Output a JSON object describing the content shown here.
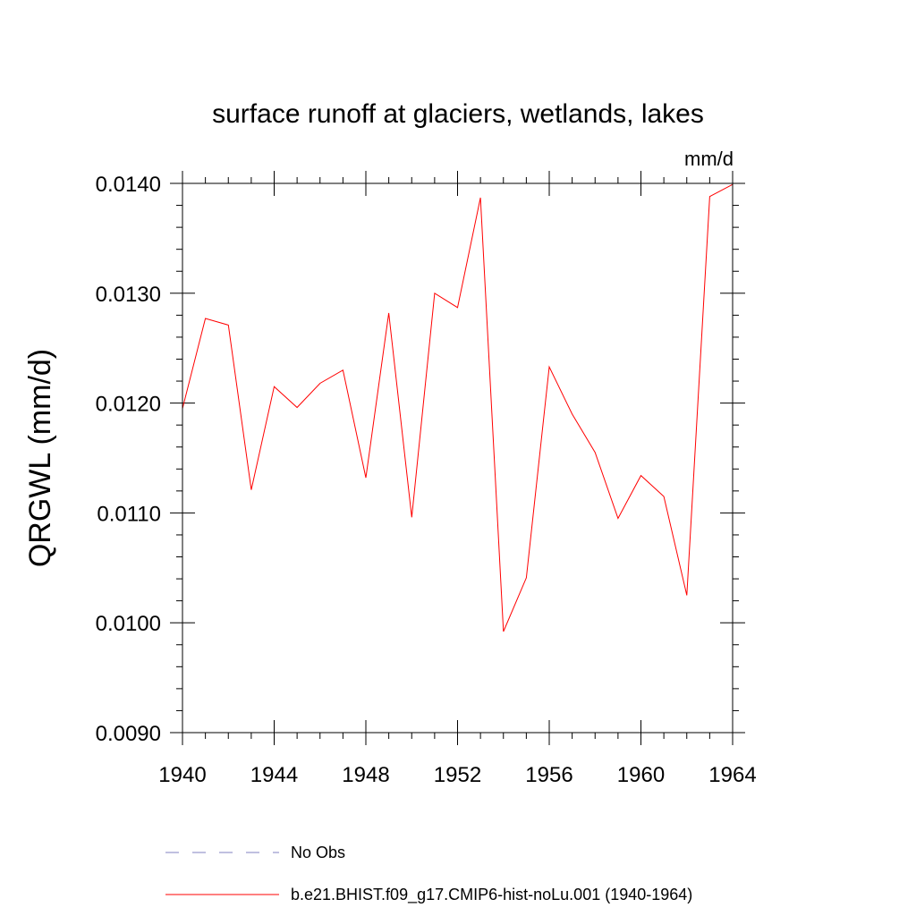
{
  "chart_data": {
    "type": "line",
    "title": "surface runoff at glaciers, wetlands, lakes",
    "units_label": "mm/d",
    "ylabel": "QRGWL  (mm/d)",
    "xlabel": "",
    "xlim": [
      1940,
      1964
    ],
    "ylim": [
      0.009,
      0.014
    ],
    "x_ticks": [
      1940,
      1944,
      1948,
      1952,
      1956,
      1960,
      1964
    ],
    "x_tick_labels": [
      "1940",
      "1944",
      "1948",
      "1952",
      "1956",
      "1960",
      "1964"
    ],
    "y_ticks": [
      0.009,
      0.01,
      0.011,
      0.012,
      0.013,
      0.014
    ],
    "y_tick_labels": [
      "0.0090",
      "0.0100",
      "0.0110",
      "0.0120",
      "0.0130",
      "0.0140"
    ],
    "grid": false,
    "legend_position": "bottom",
    "series": [
      {
        "name": "b.e21.BHIST.f09_g17.CMIP6-hist-noLu.001 (1940-1964)",
        "color": "#ff0000",
        "style": "solid",
        "x": [
          1940,
          1941,
          1942,
          1943,
          1944,
          1945,
          1946,
          1947,
          1948,
          1949,
          1950,
          1951,
          1952,
          1953,
          1954,
          1955,
          1956,
          1957,
          1958,
          1959,
          1960,
          1961,
          1962,
          1963,
          1964
        ],
        "y": [
          0.01195,
          0.01277,
          0.01271,
          0.01121,
          0.01215,
          0.01196,
          0.01218,
          0.0123,
          0.01132,
          0.01282,
          0.01096,
          0.013,
          0.01287,
          0.01387,
          0.00992,
          0.01041,
          0.01233,
          0.0119,
          0.01155,
          0.01095,
          0.01134,
          0.01115,
          0.01025,
          0.01388,
          0.01399
        ]
      }
    ],
    "legend": [
      {
        "label": "No Obs",
        "color": "#8080c0",
        "style": "dashed"
      },
      {
        "label": "b.e21.BHIST.f09_g17.CMIP6-hist-noLu.001 (1940-1964)",
        "color": "#ff0000",
        "style": "solid"
      }
    ]
  }
}
